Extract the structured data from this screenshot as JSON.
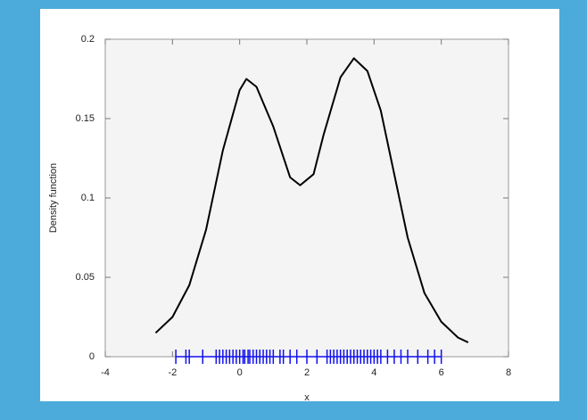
{
  "chart_data": {
    "type": "line",
    "x_label": "x",
    "y_label": "Density function",
    "x": [
      -2.5,
      -2,
      -1.5,
      -1,
      -0.5,
      0,
      0.2,
      0.5,
      1,
      1.5,
      1.8,
      2.2,
      2.5,
      3,
      3.4,
      3.8,
      4.2,
      4.5,
      5,
      5.5,
      6,
      6.5,
      6.8
    ],
    "values": [
      0.015,
      0.025,
      0.045,
      0.08,
      0.13,
      0.168,
      0.175,
      0.17,
      0.145,
      0.113,
      0.108,
      0.115,
      0.14,
      0.176,
      0.188,
      0.18,
      0.155,
      0.125,
      0.075,
      0.04,
      0.022,
      0.012,
      0.009
    ],
    "color": "#000000",
    "rug": [
      -1.9,
      -1.6,
      -1.5,
      -1.1,
      -0.7,
      -0.6,
      -0.5,
      -0.4,
      -0.3,
      -0.2,
      -0.1,
      0,
      0.1,
      0.15,
      0.25,
      0.3,
      0.4,
      0.5,
      0.6,
      0.7,
      0.8,
      0.9,
      1.0,
      1.2,
      1.3,
      1.5,
      1.7,
      2.0,
      2.3,
      2.6,
      2.7,
      2.8,
      2.9,
      3.0,
      3.1,
      3.2,
      3.3,
      3.4,
      3.5,
      3.6,
      3.7,
      3.8,
      3.9,
      4.0,
      4.1,
      4.2,
      4.4,
      4.6,
      4.8,
      5.0,
      5.3,
      5.6,
      5.8,
      6.0
    ],
    "rug_color": "#1010ee",
    "xlim": [
      -4,
      8
    ],
    "xticks": [
      -4,
      -2,
      0,
      2,
      4,
      6,
      8
    ],
    "ylim": [
      0,
      0.2
    ],
    "yticks": [
      0,
      0.05,
      0.1,
      0.15,
      0.2
    ]
  }
}
